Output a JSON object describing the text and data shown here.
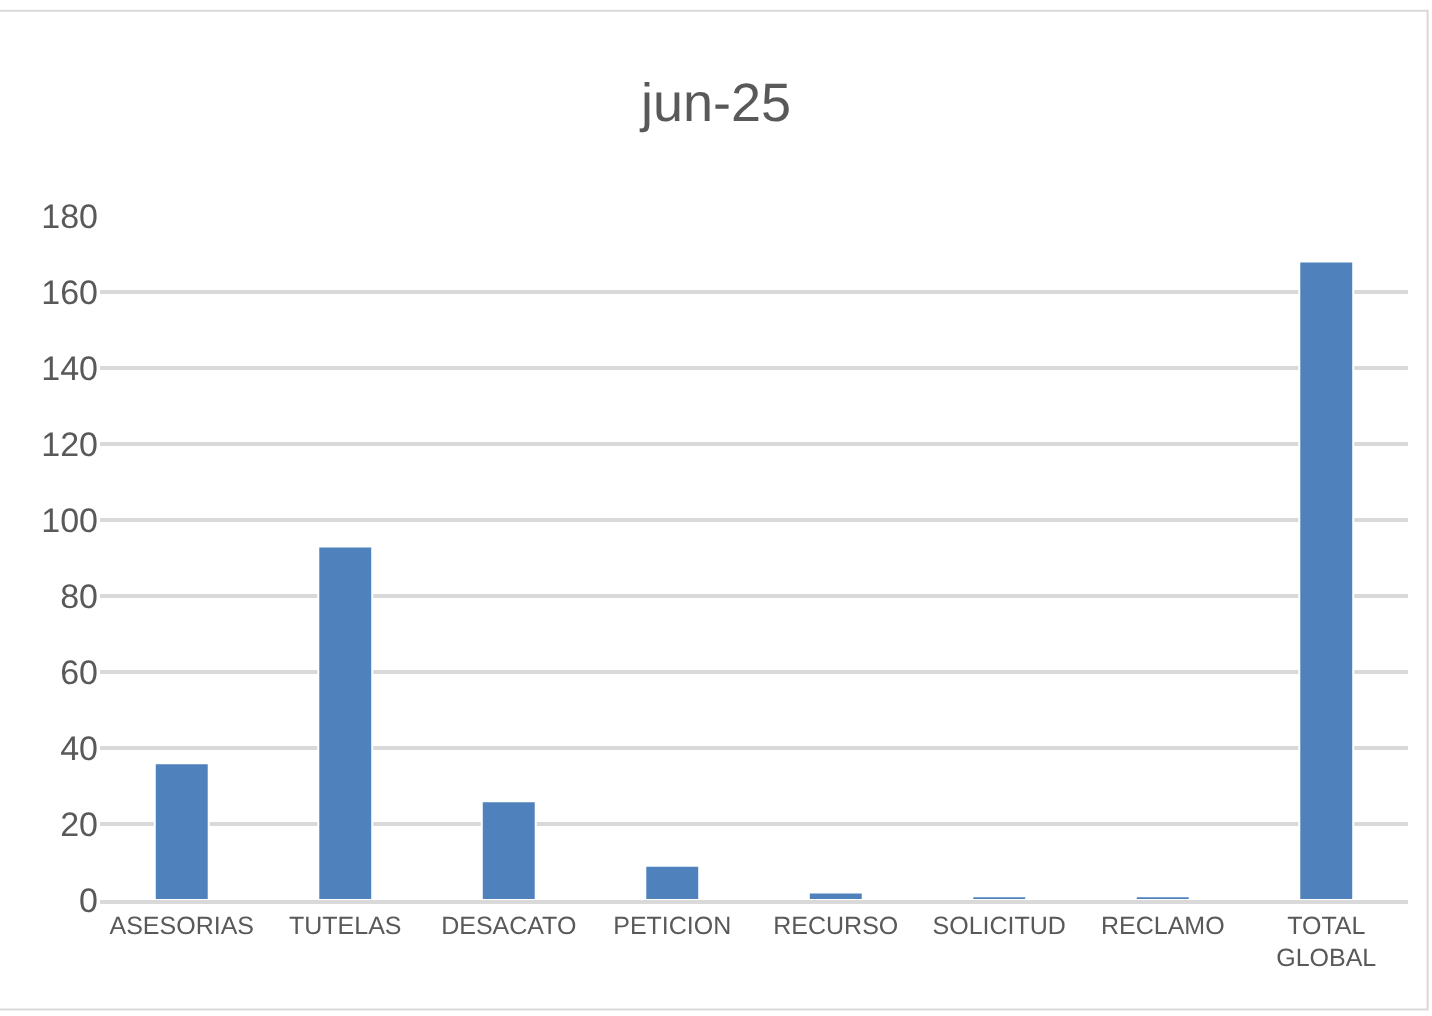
{
  "chart_data": {
    "type": "bar",
    "title": "jun-25",
    "categories": [
      "ASESORIAS",
      "TUTELAS",
      "DESACATO",
      "PETICION",
      "RECURSO",
      "SOLICITUD",
      "RECLAMO",
      "TOTAL GLOBAL"
    ],
    "values": [
      36,
      93,
      26,
      9,
      2,
      1,
      1,
      168
    ],
    "color": "#4f81bd",
    "ylim": [
      0,
      180
    ],
    "yticks": [
      0,
      20,
      40,
      60,
      80,
      100,
      120,
      140,
      160,
      180
    ],
    "grid": "y"
  }
}
